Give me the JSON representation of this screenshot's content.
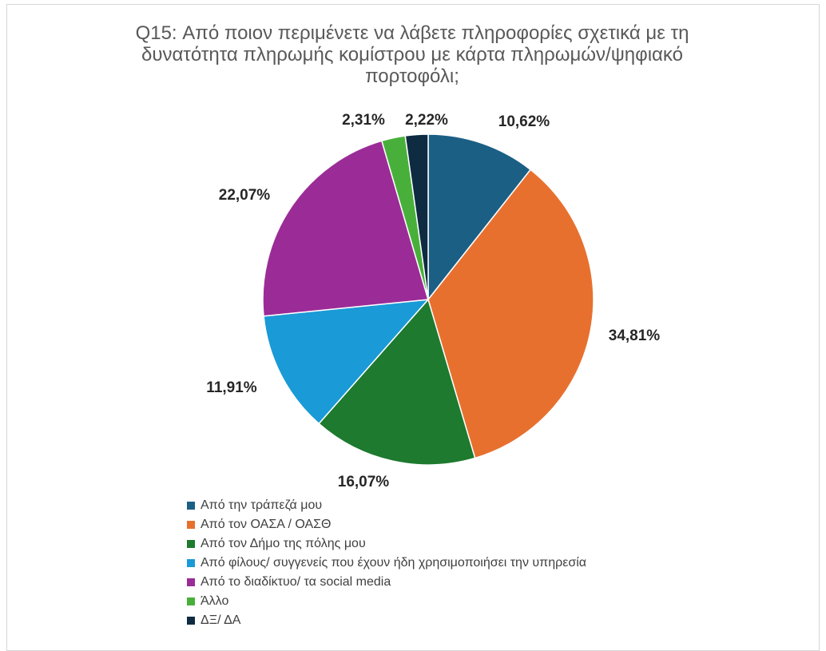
{
  "chart_data": {
    "type": "pie",
    "title": "Q15: Από ποιον περιμένετε να λάβετε πληροφορίες σχετικά με τη δυνατότητα πληρωμής κομίστρου με κάρτα πληρωμών/ψηφιακό πορτοφόλι;",
    "title_lines": [
      "Q15: Από ποιον περιμένετε να λάβετε πληροφορίες σχετικά με τη",
      "δυνατότητα πληρωμής κομίστρου με κάρτα πληρωμών/ψηφιακό",
      "πορτοφόλι;"
    ],
    "legend_position": "bottom",
    "slices": [
      {
        "label": "Από την τράπεζά μου",
        "value": 10.62,
        "display": "10,62%",
        "color": "#1b5f85"
      },
      {
        "label": "Από τον ΟΑΣΑ / ΟΑΣΘ",
        "value": 34.81,
        "display": "34,81%",
        "color": "#e8702f"
      },
      {
        "label": "Από τον Δήμο της πόλης μου",
        "value": 16.07,
        "display": "16,07%",
        "color": "#1d7a2e"
      },
      {
        "label": "Από φίλους/ συγγενείς που έχουν ήδη χρησιμοποιήσει την υπηρεσία",
        "value": 11.91,
        "display": "11,91%",
        "color": "#1a9ad6"
      },
      {
        "label": "Από το διαδίκτυο/ τα social media",
        "value": 22.07,
        "display": "22,07%",
        "color": "#9b2c97"
      },
      {
        "label": "Άλλο",
        "value": 2.31,
        "display": "2,31%",
        "color": "#48b03a"
      },
      {
        "label": "ΔΞ/ ΔΑ",
        "value": 2.22,
        "display": "2,22%",
        "color": "#0e2b42"
      }
    ]
  }
}
